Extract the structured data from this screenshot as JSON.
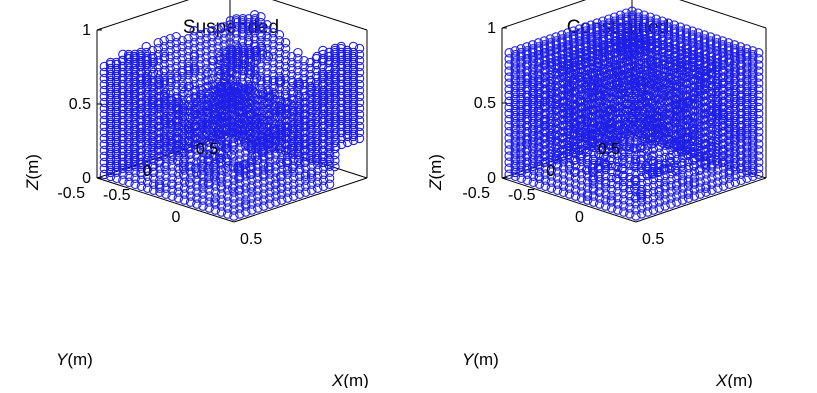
{
  "chart_data": [
    {
      "type": "scatter3d",
      "title": "Suspended",
      "marker": "circle",
      "marker_color": "#1f1fe6",
      "xlabel": {
        "name": "X",
        "unit": "(m)"
      },
      "ylabel": {
        "name": "Y",
        "unit": "(m)"
      },
      "zlabel": {
        "name": "Z",
        "unit": "(m)"
      },
      "xlim": [
        -0.5,
        0.5
      ],
      "ylim": [
        -0.5,
        0.5
      ],
      "zlim": [
        0,
        1
      ],
      "xticks": [
        "-0.5",
        "0",
        "0.5"
      ],
      "yticks": [
        "-0.5",
        "0",
        "0.5"
      ],
      "zticks": [
        "0",
        "0.5",
        "1"
      ],
      "grid": false,
      "points_note": "dense lattice of particles filling roughly the cube region; irregular top surface"
    },
    {
      "type": "scatter3d",
      "title": "Constrained",
      "marker": "circle",
      "marker_color": "#1f1fe6",
      "xlabel": {
        "name": "X",
        "unit": "(m)"
      },
      "ylabel": {
        "name": "Y",
        "unit": "(m)"
      },
      "zlabel": {
        "name": "Z",
        "unit": "(m)"
      },
      "xlim": [
        -0.5,
        0.5
      ],
      "ylim": [
        -0.5,
        0.5
      ],
      "zlim": [
        0,
        1
      ],
      "xticks": [
        "-0.5",
        "0",
        "0.5"
      ],
      "yticks": [
        "-0.5",
        "0",
        "0.5"
      ],
      "zticks": [
        "0",
        "0.5",
        "1"
      ],
      "grid": false,
      "points_note": "dense lattice of particles filling the full cube to height ~0.9"
    }
  ]
}
